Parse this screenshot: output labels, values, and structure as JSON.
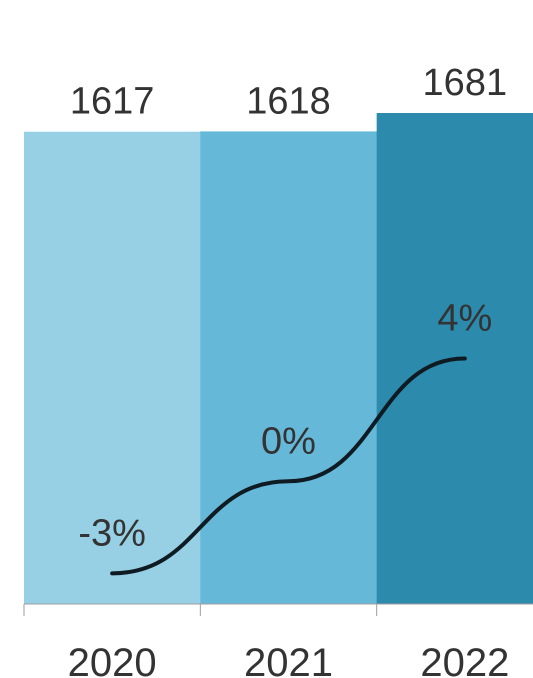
{
  "chart_data": {
    "type": "bar",
    "categories": [
      "2020",
      "2021",
      "2022"
    ],
    "values": [
      1617,
      1618,
      1681
    ],
    "data_labels": [
      "1617",
      "1618",
      "1681"
    ],
    "colors": [
      "#97d0e5",
      "#65b8d8",
      "#2c8aad"
    ],
    "ylim": [
      0,
      1681
    ],
    "overlay": {
      "type": "line",
      "values": [
        -3,
        0,
        4
      ],
      "labels": [
        "-3%",
        "0%",
        "4%"
      ],
      "ylim": [
        -4,
        12
      ],
      "color": "#0f1b22"
    },
    "grid": false
  }
}
